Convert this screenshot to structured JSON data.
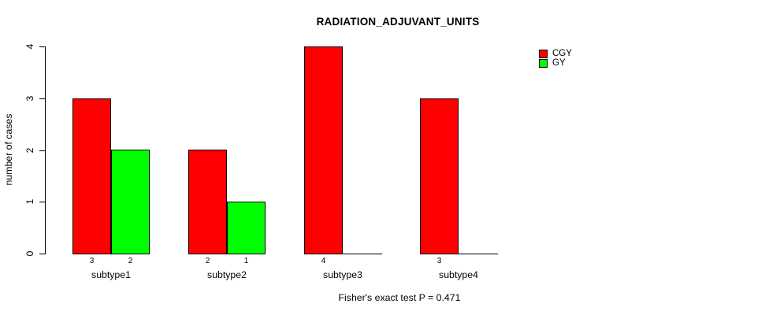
{
  "title": "RADIATION_ADJUVANT_UNITS",
  "footer": "Fisher's exact test P = 0.471",
  "y_axis": {
    "label": "number of cases",
    "ticks": [
      0,
      1,
      2,
      3,
      4
    ]
  },
  "legend": {
    "items": [
      {
        "label": "CGY",
        "color": "#ff0000"
      },
      {
        "label": "GY",
        "color": "#00ff00"
      }
    ]
  },
  "chart_data": {
    "type": "bar",
    "title": "RADIATION_ADJUVANT_UNITS",
    "categories": [
      "subtype1",
      "subtype2",
      "subtype3",
      "subtype4"
    ],
    "series": [
      {
        "name": "CGY",
        "color": "#ff0000",
        "values": [
          3,
          2,
          4,
          3
        ]
      },
      {
        "name": "GY",
        "color": "#00ff00",
        "values": [
          2,
          1,
          0,
          0
        ]
      }
    ],
    "xlabel": "",
    "ylabel": "number of cases",
    "ylim": [
      0,
      4
    ],
    "yticks": [
      0,
      1,
      2,
      3,
      4
    ],
    "grid": false,
    "bar_value_labels_shown": true,
    "zero_bars_drawn_as_baseline": true,
    "legend_position": "top-right",
    "annotation": "Fisher's exact test P = 0.471",
    "bar_border_color": "#000000",
    "background_color": "#ffffff"
  }
}
